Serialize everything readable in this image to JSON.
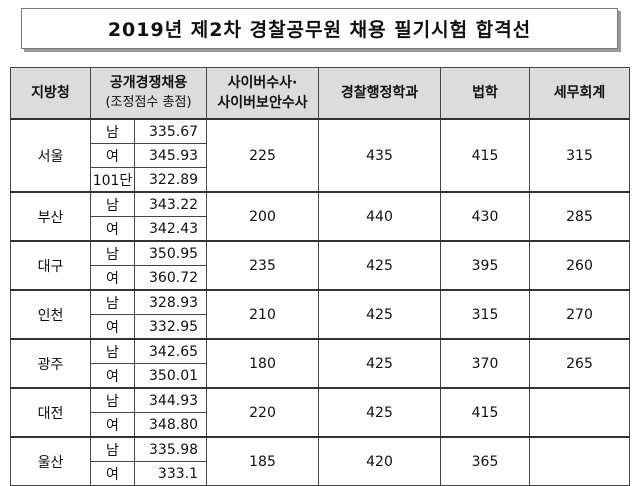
{
  "title": "2019년 제2차 경찰공무원 채용 필기시험 합격선",
  "headers": {
    "region": "지방청",
    "general_line1": "공개경쟁채용",
    "general_line2": "(조정점수 총점)",
    "cyber_line1": "사이버수사·",
    "cyber_line2": "사이버보안수사",
    "police_admin": "경찰행정학과",
    "law": "법학",
    "tax": "세무회계"
  },
  "regions": [
    {
      "name": "서울",
      "rows": [
        {
          "g": "남",
          "s": "335.67"
        },
        {
          "g": "여",
          "s": "345.93"
        },
        {
          "g": "101단",
          "s": "322.89"
        }
      ],
      "cyber": "225",
      "police_admin": "435",
      "law": "415",
      "tax": "315"
    },
    {
      "name": "부산",
      "rows": [
        {
          "g": "남",
          "s": "343.22"
        },
        {
          "g": "여",
          "s": "342.43"
        }
      ],
      "cyber": "200",
      "police_admin": "440",
      "law": "430",
      "tax": "285"
    },
    {
      "name": "대구",
      "rows": [
        {
          "g": "남",
          "s": "350.95"
        },
        {
          "g": "여",
          "s": "360.72"
        }
      ],
      "cyber": "235",
      "police_admin": "425",
      "law": "395",
      "tax": "260"
    },
    {
      "name": "인천",
      "rows": [
        {
          "g": "남",
          "s": "328.93"
        },
        {
          "g": "여",
          "s": "332.95"
        }
      ],
      "cyber": "210",
      "police_admin": "425",
      "law": "315",
      "tax": "270"
    },
    {
      "name": "광주",
      "rows": [
        {
          "g": "남",
          "s": "342.65"
        },
        {
          "g": "여",
          "s": "350.01"
        }
      ],
      "cyber": "180",
      "police_admin": "425",
      "law": "370",
      "tax": "265"
    },
    {
      "name": "대전",
      "rows": [
        {
          "g": "남",
          "s": "344.93"
        },
        {
          "g": "여",
          "s": "348.80"
        }
      ],
      "cyber": "220",
      "police_admin": "425",
      "law": "415",
      "tax": ""
    },
    {
      "name": "울산",
      "rows": [
        {
          "g": "남",
          "s": "335.98"
        },
        {
          "g": "여",
          "s": "333.1"
        }
      ],
      "cyber": "185",
      "police_admin": "420",
      "law": "365",
      "tax": ""
    }
  ]
}
